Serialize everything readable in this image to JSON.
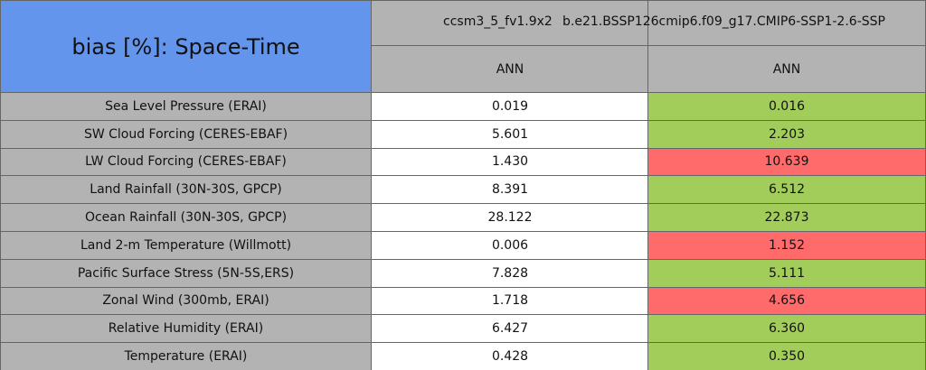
{
  "title": "bias [%]: Space-Time",
  "columns": [
    {
      "header": "ccsm3_5_fv1.9x2",
      "subheader": "ANN"
    },
    {
      "header": "b.e21.BSSP126cmip6.f09_g17.CMIP6-SSP1-2.6-SSP",
      "subheader": "ANN"
    }
  ],
  "rows": [
    {
      "label": "Sea Level Pressure (ERAI)",
      "cells": [
        "0.019",
        "0.016"
      ],
      "colors": [
        "#ffffff",
        "#a2cd5a"
      ]
    },
    {
      "label": "SW Cloud Forcing (CERES-EBAF)",
      "cells": [
        "5.601",
        "2.203"
      ],
      "colors": [
        "#ffffff",
        "#a2cd5a"
      ]
    },
    {
      "label": "LW Cloud Forcing (CERES-EBAF)",
      "cells": [
        "1.430",
        "10.639"
      ],
      "colors": [
        "#ffffff",
        "#ff6a6a"
      ]
    },
    {
      "label": "Land Rainfall (30N-30S, GPCP)",
      "cells": [
        "8.391",
        "6.512"
      ],
      "colors": [
        "#ffffff",
        "#a2cd5a"
      ]
    },
    {
      "label": "Ocean Rainfall (30N-30S, GPCP)",
      "cells": [
        "28.122",
        "22.873"
      ],
      "colors": [
        "#ffffff",
        "#a2cd5a"
      ]
    },
    {
      "label": "Land 2-m Temperature (Willmott)",
      "cells": [
        "0.006",
        "1.152"
      ],
      "colors": [
        "#ffffff",
        "#ff6a6a"
      ]
    },
    {
      "label": "Pacific Surface Stress (5N-5S,ERS)",
      "cells": [
        "7.828",
        "5.111"
      ],
      "colors": [
        "#ffffff",
        "#a2cd5a"
      ]
    },
    {
      "label": "Zonal Wind (300mb, ERAI)",
      "cells": [
        "1.718",
        "4.656"
      ],
      "colors": [
        "#ffffff",
        "#ff6a6a"
      ]
    },
    {
      "label": "Relative Humidity (ERAI)",
      "cells": [
        "6.427",
        "6.360"
      ],
      "colors": [
        "#ffffff",
        "#a2cd5a"
      ]
    },
    {
      "label": "Temperature (ERAI)",
      "cells": [
        "0.428",
        "0.350"
      ],
      "colors": [
        "#ffffff",
        "#a2cd5a"
      ]
    }
  ]
}
